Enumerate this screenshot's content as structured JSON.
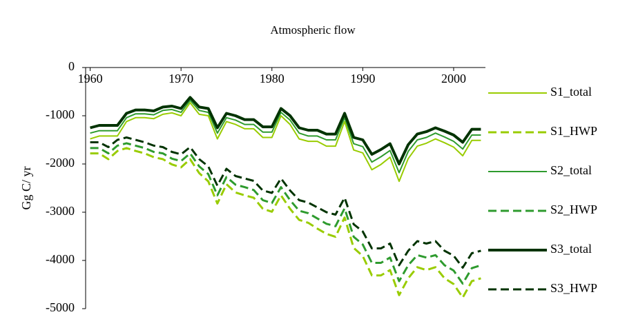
{
  "chart_data": {
    "type": "line",
    "title": "Atmospheric flow",
    "y_label": "Gg C/ yr",
    "x": [
      1960,
      1961,
      1962,
      1963,
      1964,
      1965,
      1966,
      1967,
      1968,
      1969,
      1970,
      1971,
      1972,
      1973,
      1974,
      1975,
      1976,
      1977,
      1978,
      1979,
      1980,
      1981,
      1982,
      1983,
      1984,
      1985,
      1986,
      1987,
      1988,
      1989,
      1990,
      1991,
      1992,
      1993,
      1994,
      1995,
      1996,
      1997,
      1998,
      1999,
      2000,
      2001,
      2002,
      2003
    ],
    "xlim": [
      1959.5,
      2003.5
    ],
    "xticks": [
      1960,
      1970,
      1980,
      1990,
      2000
    ],
    "ylim": [
      -5000,
      0
    ],
    "yticks": [
      -5000,
      -4000,
      -3000,
      -2000,
      -1000,
      0
    ],
    "grid": false,
    "legend": "right",
    "series": [
      {
        "name": "S1_total",
        "color": "#99cc00",
        "dashed": false,
        "width": 2,
        "values": [
          -1480,
          -1420,
          -1420,
          -1420,
          -1120,
          -1040,
          -1040,
          -1060,
          -970,
          -940,
          -1000,
          -730,
          -970,
          -1000,
          -1480,
          -1120,
          -1180,
          -1270,
          -1270,
          -1450,
          -1450,
          -1000,
          -1180,
          -1480,
          -1530,
          -1530,
          -1630,
          -1630,
          -1120,
          -1710,
          -1770,
          -2120,
          -2010,
          -1860,
          -2360,
          -1890,
          -1630,
          -1570,
          -1480,
          -1560,
          -1650,
          -1830,
          -1510,
          -1510
        ]
      },
      {
        "name": "S1_HWP",
        "color": "#99cc00",
        "dashed": true,
        "width": 3,
        "values": [
          -1780,
          -1780,
          -1900,
          -1730,
          -1670,
          -1730,
          -1780,
          -1860,
          -1900,
          -2010,
          -2070,
          -1900,
          -2190,
          -2360,
          -2820,
          -2420,
          -2590,
          -2650,
          -2700,
          -2930,
          -2990,
          -2650,
          -2930,
          -3160,
          -3220,
          -3340,
          -3450,
          -3510,
          -3110,
          -3740,
          -3910,
          -4310,
          -4310,
          -4200,
          -4720,
          -4370,
          -4140,
          -4200,
          -4140,
          -4370,
          -4490,
          -4770,
          -4430,
          -4370
        ]
      },
      {
        "name": "S2_total",
        "color": "#2e9b2e",
        "dashed": false,
        "width": 2,
        "values": [
          -1360,
          -1310,
          -1310,
          -1310,
          -1040,
          -960,
          -960,
          -980,
          -890,
          -870,
          -930,
          -680,
          -890,
          -930,
          -1360,
          -1040,
          -1090,
          -1180,
          -1180,
          -1340,
          -1340,
          -930,
          -1090,
          -1360,
          -1420,
          -1420,
          -1500,
          -1500,
          -1040,
          -1580,
          -1640,
          -1960,
          -1850,
          -1720,
          -2180,
          -1740,
          -1500,
          -1450,
          -1360,
          -1440,
          -1530,
          -1690,
          -1400,
          -1400
        ]
      },
      {
        "name": "S2_HWP",
        "color": "#2e9b2e",
        "dashed": true,
        "width": 3,
        "values": [
          -1670,
          -1670,
          -1780,
          -1620,
          -1570,
          -1620,
          -1670,
          -1750,
          -1780,
          -1890,
          -1940,
          -1780,
          -2050,
          -2210,
          -2650,
          -2270,
          -2430,
          -2480,
          -2540,
          -2750,
          -2810,
          -2480,
          -2750,
          -2970,
          -3020,
          -3130,
          -3240,
          -3290,
          -2920,
          -3510,
          -3670,
          -4050,
          -4050,
          -3940,
          -4430,
          -4100,
          -3890,
          -3940,
          -3890,
          -4100,
          -4210,
          -4480,
          -4160,
          -4100
        ]
      },
      {
        "name": "S3_total",
        "color": "#003300",
        "dashed": false,
        "width": 4,
        "values": [
          -1250,
          -1200,
          -1200,
          -1200,
          -950,
          -880,
          -880,
          -900,
          -820,
          -800,
          -850,
          -620,
          -820,
          -850,
          -1250,
          -950,
          -1000,
          -1080,
          -1080,
          -1230,
          -1230,
          -850,
          -1000,
          -1250,
          -1300,
          -1300,
          -1380,
          -1380,
          -950,
          -1450,
          -1500,
          -1800,
          -1700,
          -1580,
          -2000,
          -1600,
          -1380,
          -1330,
          -1250,
          -1320,
          -1400,
          -1550,
          -1280,
          -1280
        ]
      },
      {
        "name": "S3_HWP",
        "color": "#003300",
        "dashed": true,
        "width": 3,
        "values": [
          -1550,
          -1550,
          -1650,
          -1500,
          -1450,
          -1500,
          -1550,
          -1620,
          -1650,
          -1750,
          -1800,
          -1650,
          -1900,
          -2050,
          -2450,
          -2100,
          -2250,
          -2300,
          -2350,
          -2550,
          -2600,
          -2300,
          -2550,
          -2750,
          -2800,
          -2900,
          -3000,
          -3050,
          -2700,
          -3250,
          -3400,
          -3750,
          -3750,
          -3650,
          -4100,
          -3800,
          -3600,
          -3650,
          -3600,
          -3800,
          -3900,
          -4150,
          -3850,
          -3800
        ]
      }
    ]
  }
}
